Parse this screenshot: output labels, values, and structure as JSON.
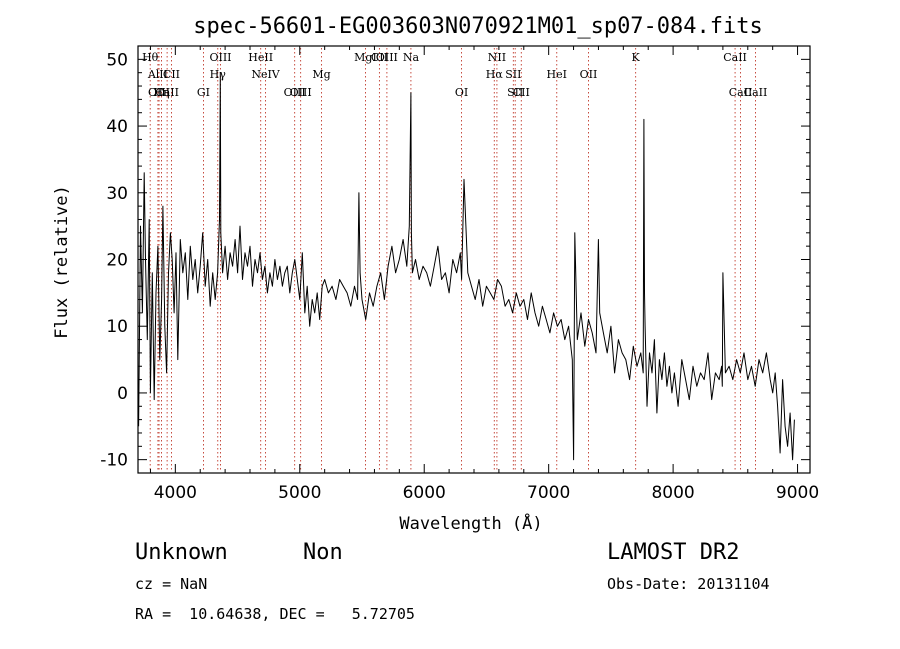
{
  "chart_data": {
    "type": "line",
    "title": "spec-56601-EG003603N070921M01_sp07-084.fits",
    "xlabel": "Wavelength (Å)",
    "ylabel": "Flux (relative)",
    "xlim": [
      3700,
      9100
    ],
    "ylim": [
      -12,
      52
    ],
    "xticks": [
      4000,
      5000,
      6000,
      7000,
      8000,
      9000
    ],
    "yticks": [
      -10,
      0,
      10,
      20,
      30,
      40,
      50
    ],
    "grid": false,
    "series": [
      {
        "x": [
          3705,
          3720,
          3735,
          3750,
          3760,
          3775,
          3790,
          3800,
          3815,
          3830,
          3845,
          3860,
          3875,
          3890,
          3900,
          3915,
          3930,
          3945,
          3960,
          3975,
          3990,
          4005,
          4020,
          4040,
          4060,
          4080,
          4100,
          4120,
          4140,
          4160,
          4180,
          4200,
          4220,
          4240,
          4260,
          4280,
          4300,
          4320,
          4340,
          4355,
          4361,
          4365,
          4380,
          4400,
          4420,
          4440,
          4460,
          4480,
          4500,
          4520,
          4540,
          4560,
          4580,
          4600,
          4620,
          4640,
          4660,
          4680,
          4700,
          4720,
          4740,
          4760,
          4780,
          4800,
          4820,
          4840,
          4860,
          4880,
          4900,
          4920,
          4940,
          4960,
          4980,
          5000,
          5020,
          5040,
          5060,
          5080,
          5100,
          5120,
          5140,
          5160,
          5180,
          5200,
          5230,
          5260,
          5290,
          5320,
          5350,
          5380,
          5410,
          5440,
          5465,
          5475,
          5485,
          5500,
          5530,
          5560,
          5590,
          5620,
          5650,
          5680,
          5710,
          5740,
          5770,
          5800,
          5830,
          5860,
          5880,
          5893,
          5897,
          5905,
          5930,
          5960,
          5990,
          6020,
          6050,
          6080,
          6110,
          6140,
          6170,
          6200,
          6230,
          6260,
          6290,
          6300,
          6320,
          6350,
          6380,
          6410,
          6440,
          6470,
          6500,
          6530,
          6560,
          6590,
          6620,
          6650,
          6680,
          6710,
          6740,
          6770,
          6800,
          6830,
          6860,
          6890,
          6920,
          6950,
          6980,
          7010,
          7040,
          7070,
          7100,
          7130,
          7160,
          7190,
          7200,
          7210,
          7230,
          7260,
          7290,
          7320,
          7350,
          7380,
          7400,
          7410,
          7440,
          7470,
          7500,
          7530,
          7560,
          7590,
          7620,
          7650,
          7680,
          7710,
          7740,
          7760,
          7765,
          7770,
          7775,
          7790,
          7810,
          7830,
          7850,
          7870,
          7890,
          7910,
          7930,
          7950,
          7970,
          7990,
          8010,
          8040,
          8070,
          8100,
          8130,
          8160,
          8190,
          8220,
          8250,
          8280,
          8310,
          8340,
          8370,
          8390,
          8395,
          8400,
          8420,
          8450,
          8480,
          8510,
          8540,
          8570,
          8600,
          8630,
          8660,
          8690,
          8720,
          8750,
          8780,
          8800,
          8820,
          8840,
          8860,
          8880,
          8900,
          8920,
          8940,
          8960,
          8975
        ],
        "y": [
          -5,
          25,
          12,
          33,
          20,
          8,
          26,
          0,
          18,
          -1,
          15,
          22,
          5,
          14,
          28,
          10,
          3,
          18,
          24,
          20,
          12,
          21,
          5,
          23,
          18,
          21,
          14,
          22,
          17,
          20,
          15,
          19,
          24,
          16,
          20,
          13,
          18,
          14,
          18,
          26,
          48,
          24,
          18,
          22,
          17,
          21,
          19,
          23,
          18,
          25,
          17,
          21,
          19,
          22,
          16,
          20,
          18,
          21,
          17,
          19,
          15,
          18,
          16,
          20,
          17,
          19,
          16,
          18,
          19,
          15,
          18,
          20,
          17,
          14,
          21,
          12,
          16,
          10,
          14,
          12,
          15,
          11,
          16,
          17,
          15,
          16,
          14,
          17,
          16,
          15,
          13,
          16,
          14,
          30,
          18,
          14,
          11,
          15,
          13,
          16,
          18,
          14,
          19,
          22,
          18,
          20,
          23,
          19,
          25,
          45,
          24,
          18,
          20,
          17,
          19,
          18,
          16,
          19,
          22,
          17,
          18,
          15,
          20,
          18,
          21,
          17,
          32,
          18,
          16,
          14,
          17,
          13,
          16,
          15,
          14,
          17,
          16,
          13,
          14,
          12,
          15,
          13,
          14,
          11,
          15,
          12,
          10,
          13,
          11,
          9,
          12,
          10,
          11,
          8,
          10,
          5,
          -10,
          24,
          8,
          12,
          7,
          11,
          9,
          6,
          23,
          12,
          9,
          6,
          10,
          3,
          8,
          6,
          5,
          2,
          7,
          4,
          6,
          3,
          41,
          15,
          10,
          -2,
          6,
          3,
          8,
          -3,
          5,
          2,
          6,
          1,
          4,
          0,
          3,
          -2,
          5,
          2,
          -1,
          4,
          1,
          3,
          2,
          6,
          -1,
          3,
          2,
          4,
          1,
          18,
          3,
          4,
          2,
          5,
          3,
          6,
          2,
          4,
          1,
          5,
          3,
          6,
          2,
          0,
          3,
          -2,
          -9,
          2,
          -5,
          -8,
          -3,
          -10,
          -4
        ]
      }
    ],
    "lines": [
      {
        "label": "Hθ",
        "wl": 3798,
        "row": 1
      },
      {
        "label": "AlII",
        "wl": 3860,
        "row": 2
      },
      {
        "label": "OIII",
        "wl": 3869,
        "row": 3
      },
      {
        "label": "Hη",
        "wl": 3889,
        "row": 3
      },
      {
        "label": "CaII",
        "wl": 3934,
        "row": 3
      },
      {
        "label": "CII",
        "wl": 3969,
        "row": 2
      },
      {
        "label": "GI",
        "wl": 4226,
        "row": 3
      },
      {
        "label": "OIII",
        "wl": 4363,
        "row": 1
      },
      {
        "label": "Hγ",
        "wl": 4341,
        "row": 2
      },
      {
        "label": "HeII",
        "wl": 4686,
        "row": 1
      },
      {
        "label": "NeIV",
        "wl": 4725,
        "row": 2
      },
      {
        "label": "OIII",
        "wl": 4959,
        "row": 3
      },
      {
        "label": "OIII",
        "wl": 5007,
        "row": 3
      },
      {
        "label": "Mg",
        "wl": 5175,
        "row": 2
      },
      {
        "label": "MgI",
        "wl": 5528,
        "row": 1
      },
      {
        "label": "CII",
        "wl": 5640,
        "row": 1
      },
      {
        "label": "OIII",
        "wl": 5700,
        "row": 1
      },
      {
        "label": "Na",
        "wl": 5893,
        "row": 1
      },
      {
        "label": "OI",
        "wl": 6300,
        "row": 3
      },
      {
        "label": "NII",
        "wl": 6584,
        "row": 1
      },
      {
        "label": "Hα",
        "wl": 6563,
        "row": 2
      },
      {
        "label": "SII",
        "wl": 6716,
        "row": 2
      },
      {
        "label": "SII",
        "wl": 6731,
        "row": 3
      },
      {
        "label": "CII",
        "wl": 6780,
        "row": 3
      },
      {
        "label": "OII",
        "wl": 7320,
        "row": 2
      },
      {
        "label": "K",
        "wl": 7699,
        "row": 1
      },
      {
        "label": "HeI",
        "wl": 7065,
        "row": 2
      },
      {
        "label": "CaII",
        "wl": 8498,
        "row": 1
      },
      {
        "label": "CaII",
        "wl": 8542,
        "row": 3
      },
      {
        "label": "CaII",
        "wl": 8662,
        "row": 3
      }
    ]
  },
  "info": {
    "class_label": "Unknown",
    "subclass_label": "Non",
    "cz_text": "cz = NaN",
    "coords_text": "RA =  10.64638, DEC =   5.72705",
    "survey_label": "LAMOST DR2",
    "obs_date_text": "Obs-Date: 20131104"
  }
}
